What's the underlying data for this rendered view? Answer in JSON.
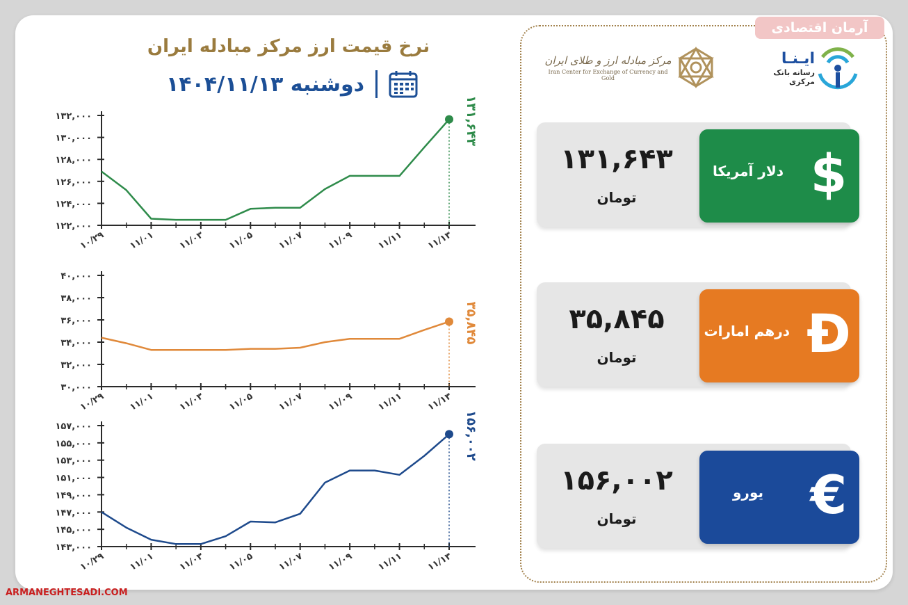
{
  "header": {
    "title": "نرخ قیمت ارز مرکز مبادله ایران",
    "date": "دوشنبه ۱۴۰۴/۱۱/۱۳"
  },
  "logos": {
    "ina_name": "ایـنـا",
    "ina_sub": "رسانه بانک مرکزی",
    "ice_name": "مرکز مبادله ارز و طلای ایران",
    "ice_en": "Iran Center for Exchange of Currency and Gold"
  },
  "watermark": {
    "top": "آرمان اقتصادی",
    "bottom": "ARMANEGHTESADI.COM"
  },
  "rates": [
    {
      "name": "دلار آمریکا",
      "value": "۱۳۱,۶۴۳",
      "unit": "تومان",
      "symbol": "$",
      "color": "#1e8c49"
    },
    {
      "name": "درهم امارات",
      "value": "۳۵,۸۴۵",
      "unit": "تومان",
      "symbol": "Đ",
      "color": "#e67a22"
    },
    {
      "name": "یورو",
      "value": "۱۵۶,۰۰۲",
      "unit": "تومان",
      "symbol": "€",
      "color": "#1b4a9a"
    }
  ],
  "chart_data": [
    {
      "type": "line",
      "series_color": "#2e8b4a",
      "x_ticks": [
        "۱۰/۲۹",
        "۱۱/۰۱",
        "۱۱/۰۳",
        "۱۱/۰۵",
        "۱۱/۰۷",
        "۱۱/۰۹",
        "۱۱/۱۱",
        "۱۱/۱۳"
      ],
      "y_ticks": [
        "۱۲۲,۰۰۰",
        "۱۲۴,۰۰۰",
        "۱۲۶,۰۰۰",
        "۱۲۸,۰۰۰",
        "۱۳۰,۰۰۰",
        "۱۳۲,۰۰۰"
      ],
      "ylim": [
        122000,
        132000
      ],
      "x": [
        0,
        0.5,
        1,
        1.5,
        2,
        2.5,
        3,
        3.5,
        4,
        4.5,
        5,
        5.5,
        6,
        6.5,
        7
      ],
      "values": [
        126900,
        125200,
        122600,
        122500,
        122500,
        122500,
        123500,
        123600,
        123600,
        125300,
        126500,
        126500,
        126500,
        129100,
        131643
      ],
      "last_label": "۱۳۱,۶۴۳"
    },
    {
      "type": "line",
      "series_color": "#e0893a",
      "x_ticks": [
        "۱۰/۲۹",
        "۱۱/۰۱",
        "۱۱/۰۳",
        "۱۱/۰۵",
        "۱۱/۰۷",
        "۱۱/۰۹",
        "۱۱/۱۱",
        "۱۱/۱۳"
      ],
      "y_ticks": [
        "۳۰,۰۰۰",
        "۳۲,۰۰۰",
        "۳۴,۰۰۰",
        "۳۶,۰۰۰",
        "۳۸,۰۰۰",
        "۴۰,۰۰۰"
      ],
      "ylim": [
        30000,
        40000
      ],
      "x": [
        0,
        0.5,
        1,
        1.5,
        2,
        2.5,
        3,
        3.5,
        4,
        4.5,
        5,
        5.5,
        6,
        6.5,
        7
      ],
      "values": [
        34400,
        33900,
        33300,
        33300,
        33300,
        33300,
        33400,
        33400,
        33500,
        34000,
        34300,
        34300,
        34300,
        35100,
        35845
      ],
      "last_label": "۳۵,۸۴۵"
    },
    {
      "type": "line",
      "series_color": "#1e4a8c",
      "x_ticks": [
        "۱۰/۲۹",
        "۱۱/۰۱",
        "۱۱/۰۳",
        "۱۱/۰۵",
        "۱۱/۰۷",
        "۱۱/۰۹",
        "۱۱/۱۱",
        "۱۱/۱۳"
      ],
      "y_ticks": [
        "۱۴۳,۰۰۰",
        "۱۴۵,۰۰۰",
        "۱۴۷,۰۰۰",
        "۱۴۹,۰۰۰",
        "۱۵۱,۰۰۰",
        "۱۵۳,۰۰۰",
        "۱۵۵,۰۰۰",
        "۱۵۷,۰۰۰"
      ],
      "ylim": [
        143000,
        157000
      ],
      "x": [
        0,
        0.5,
        1,
        1.5,
        2,
        2.5,
        3,
        3.5,
        4,
        4.5,
        5,
        5.5,
        6,
        6.5,
        7
      ],
      "values": [
        147000,
        145200,
        143800,
        143300,
        143300,
        144200,
        145900,
        145800,
        146800,
        150400,
        151800,
        151800,
        151300,
        153500,
        156002
      ],
      "last_label": "۱۵۶,۰۰۲"
    }
  ]
}
